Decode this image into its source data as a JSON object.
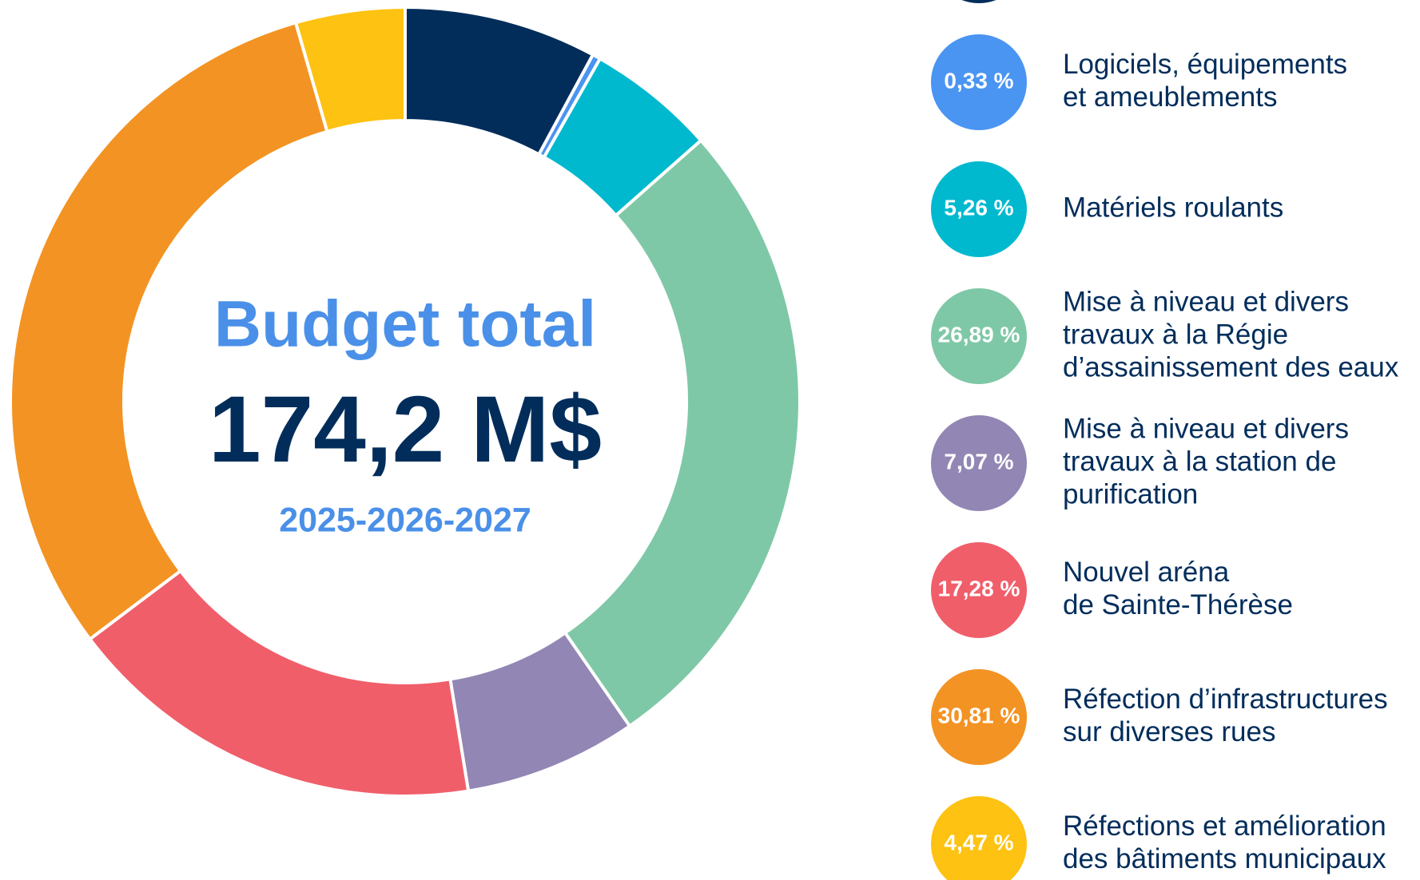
{
  "chart_data": {
    "type": "donut",
    "center_title": "Budget total",
    "center_value": "174,2 M$",
    "center_subtitle": "2025-2026-2027",
    "categories": [
      null,
      [
        "Logiciels, équipements",
        "et ameublements"
      ],
      [
        "Matériels roulants"
      ],
      [
        "Mise à niveau et divers",
        "travaux à la Régie",
        "d’assainissement des eaux"
      ],
      [
        "Mise à niveau et divers",
        "travaux à la station de",
        "purification"
      ],
      [
        "Nouvel aréna",
        "de Sainte-Thérèse"
      ],
      [
        "Réfection d’infrastructures",
        "sur diverses rues"
      ],
      [
        "Réfections et amélioration",
        "des bâtiments municipaux"
      ]
    ],
    "values": [
      7.89,
      0.33,
      5.26,
      26.89,
      7.07,
      17.28,
      30.81,
      4.47
    ],
    "value_labels": [
      null,
      "0,33 %",
      "5,26 %",
      "26,89 %",
      "7,07 %",
      "17,28 %",
      "30,81 %",
      "4,47 %"
    ],
    "colors": [
      "#022d5b",
      "#4a94f2",
      "#00b9cf",
      "#7fc8a7",
      "#9286b4",
      "#f05e6a",
      "#f39323",
      "#fdc212"
    ]
  }
}
